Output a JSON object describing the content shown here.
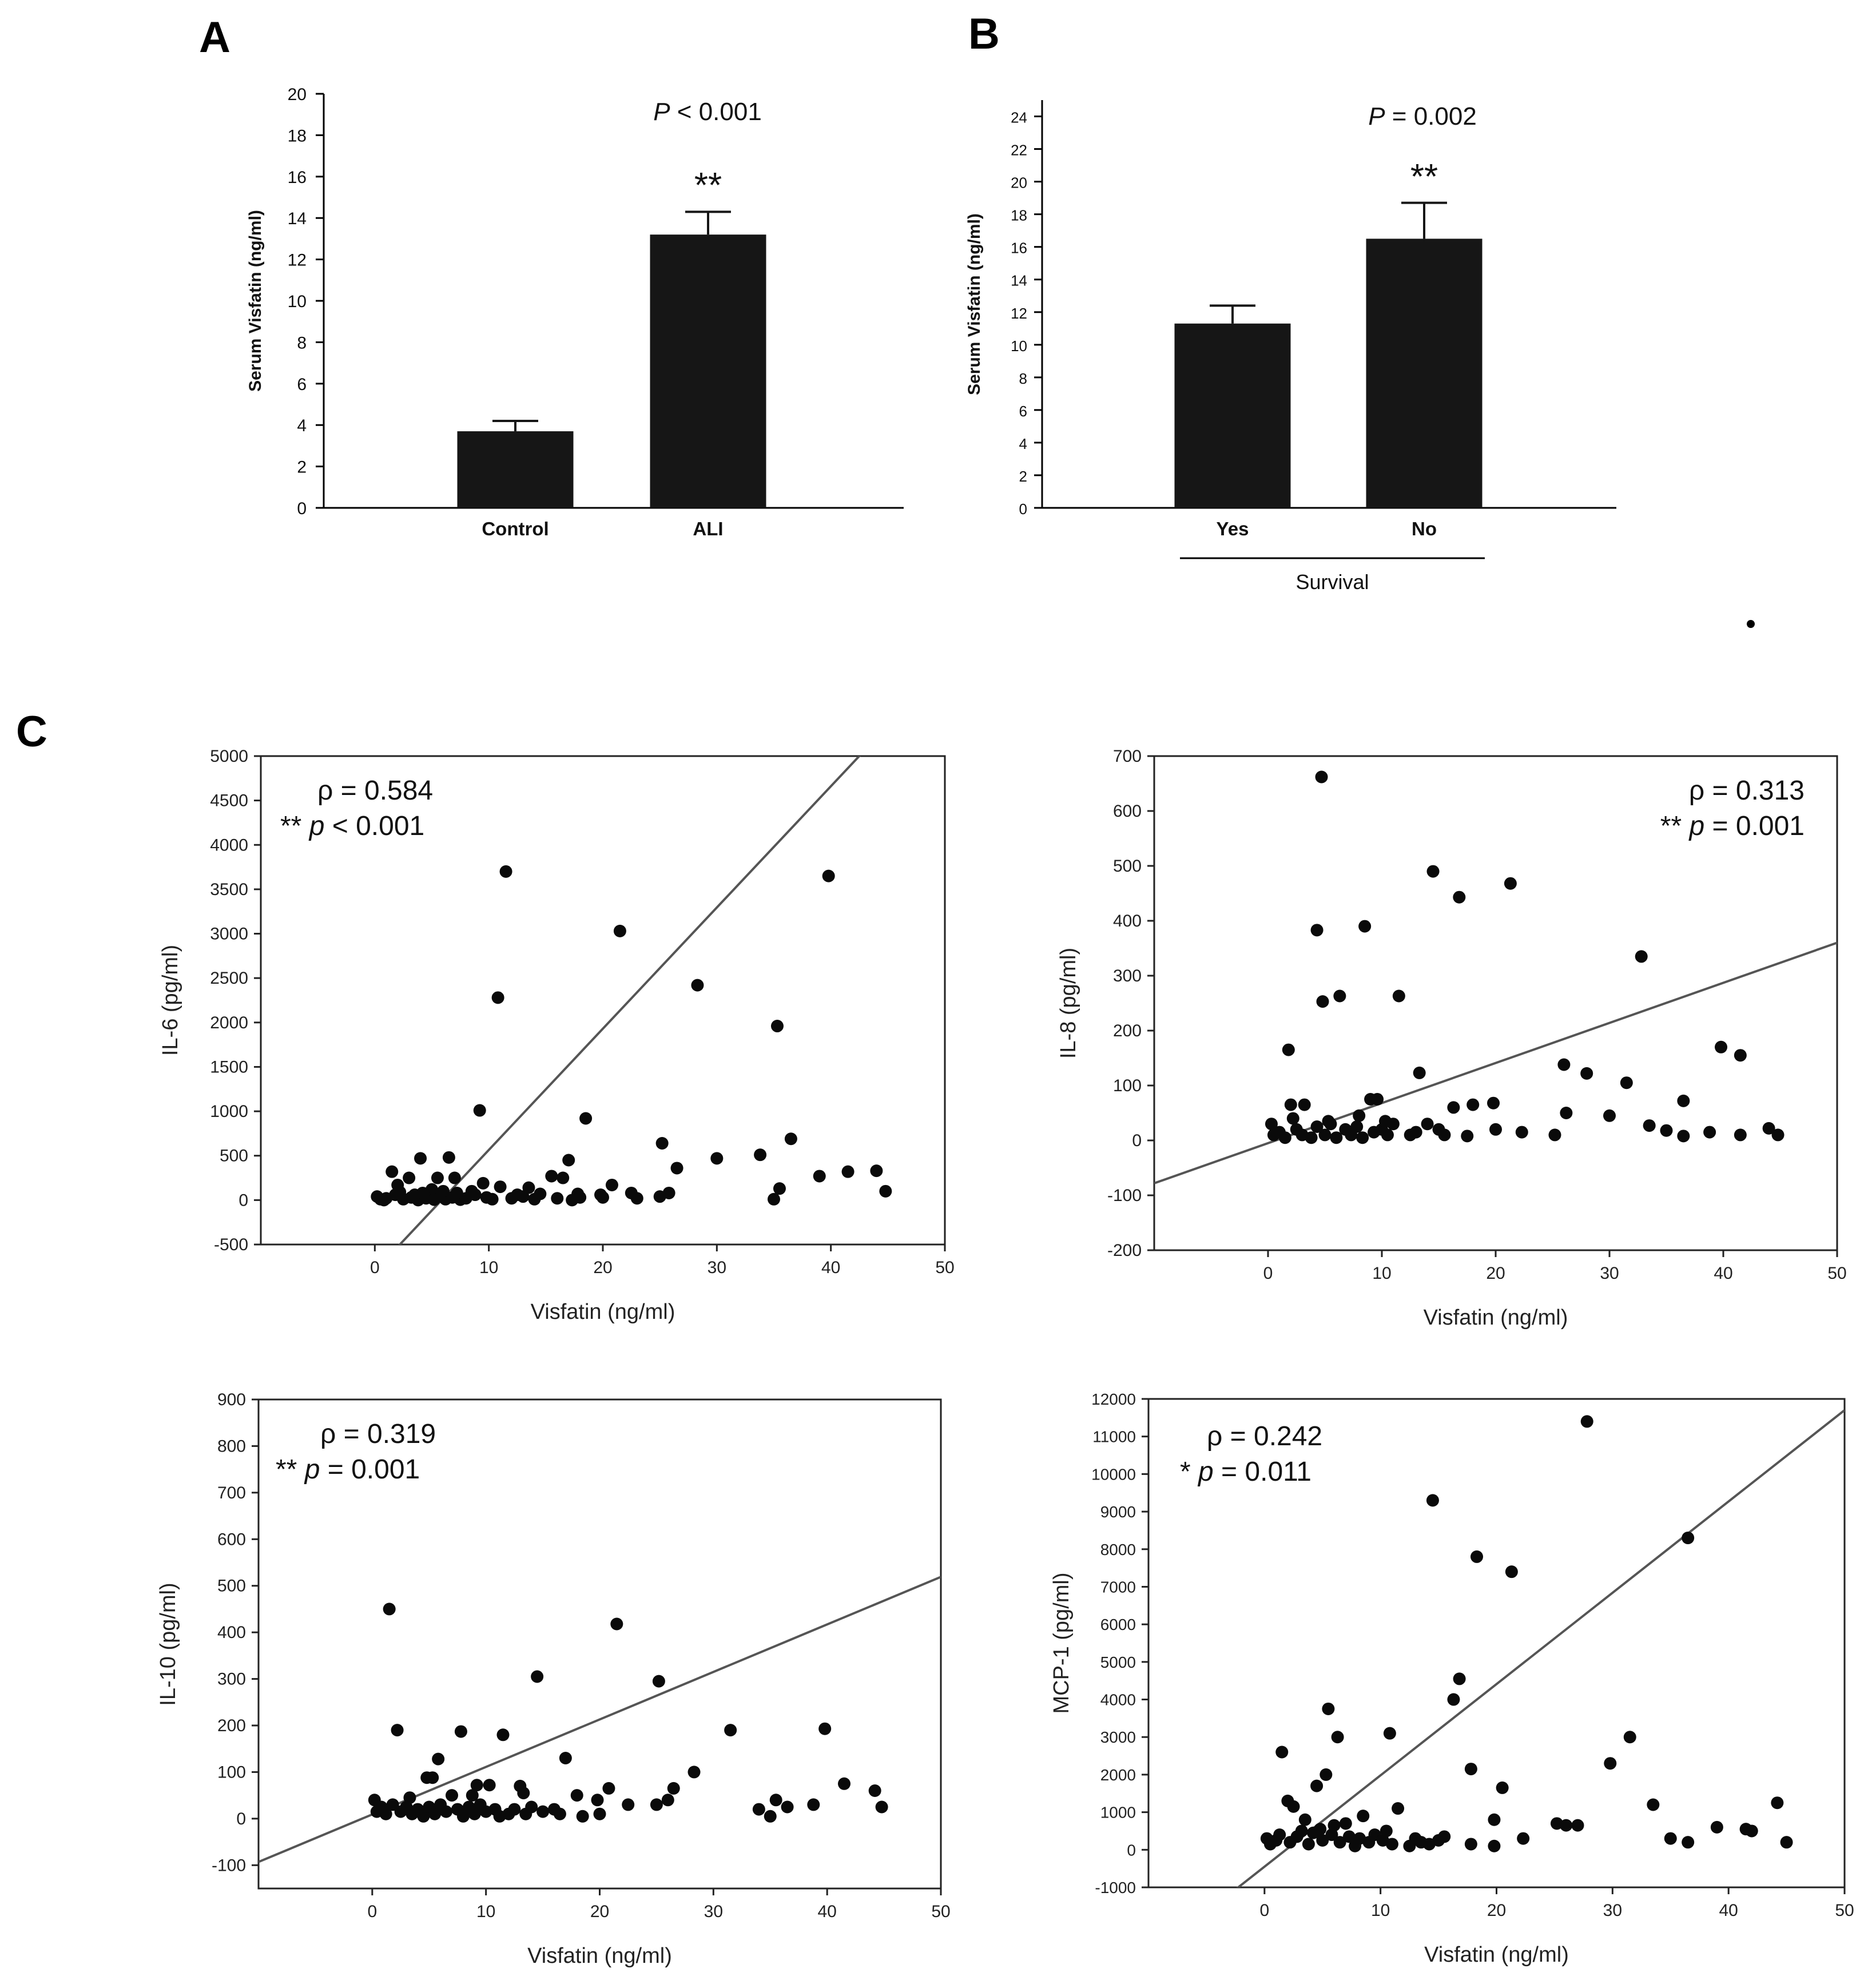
{
  "panels": {
    "a": "A",
    "b": "B",
    "c": "C"
  },
  "chart_data": [
    {
      "id": "A",
      "type": "bar",
      "ylabel": "Serum Visfatin (ng/ml)",
      "xlabel": "",
      "categories": [
        "Control",
        "ALI"
      ],
      "values": [
        3.7,
        13.2
      ],
      "errors": [
        0.5,
        1.1
      ],
      "ylim": [
        0,
        20
      ],
      "yticks": [
        0,
        2,
        4,
        6,
        8,
        10,
        12,
        14,
        16,
        18,
        20
      ],
      "annotation": {
        "italic": "P",
        "rest": " < 0.001"
      },
      "significance": [
        "",
        "**"
      ]
    },
    {
      "id": "B",
      "type": "bar",
      "ylabel": "Serum Visfatin (ng/ml)",
      "xlabel": "Survival",
      "categories": [
        "Yes",
        "No"
      ],
      "values": [
        11.3,
        16.5
      ],
      "errors": [
        1.1,
        2.2
      ],
      "ylim": [
        0,
        25
      ],
      "yticks": [
        0,
        2,
        4,
        6,
        8,
        10,
        12,
        14,
        16,
        18,
        20,
        22,
        24
      ],
      "annotation": {
        "italic": "P",
        "rest": " = 0.002"
      },
      "significance": [
        "",
        "**"
      ]
    },
    {
      "id": "C1",
      "type": "scatter",
      "xlabel": "Visfatin (ng/ml)",
      "ylabel": "IL-6 (pg/ml)",
      "xlim": [
        -10,
        50
      ],
      "ylim": [
        -500,
        5000
      ],
      "xticks": [
        0,
        10,
        20,
        30,
        40,
        50
      ],
      "yticks": [
        -500,
        0,
        500,
        1000,
        1500,
        2000,
        2500,
        3000,
        3500,
        4000,
        4500,
        5000
      ],
      "stats": {
        "rho": "ρ = 0.584",
        "stars": "**",
        "p_italic": "p",
        "p_rest": " < 0.001"
      },
      "fit_line": {
        "slope": 136.5,
        "intercept": -800
      },
      "points": [
        [
          11.5,
          3700
        ],
        [
          39.8,
          3650
        ],
        [
          21.5,
          3030
        ],
        [
          28.3,
          2420
        ],
        [
          10.8,
          2280
        ],
        [
          35.3,
          1960
        ],
        [
          9.2,
          1010
        ],
        [
          18.5,
          920
        ],
        [
          36.5,
          690
        ],
        [
          25.2,
          640
        ],
        [
          33.8,
          510
        ],
        [
          30,
          470
        ],
        [
          17,
          450
        ],
        [
          4,
          470
        ],
        [
          6.5,
          480
        ],
        [
          26.5,
          360
        ],
        [
          44,
          330
        ],
        [
          41.5,
          320
        ],
        [
          1.5,
          320
        ],
        [
          39,
          270
        ],
        [
          15.5,
          270
        ],
        [
          16.5,
          250
        ],
        [
          5.5,
          250
        ],
        [
          3,
          250
        ],
        [
          7,
          250
        ],
        [
          13.5,
          140
        ],
        [
          20.8,
          170
        ],
        [
          2,
          170
        ],
        [
          11,
          150
        ],
        [
          9.5,
          190
        ],
        [
          22.5,
          80
        ],
        [
          17.8,
          70
        ],
        [
          35.5,
          130
        ],
        [
          44.8,
          100
        ],
        [
          25.8,
          80
        ],
        [
          19.8,
          60
        ],
        [
          25,
          40
        ],
        [
          20,
          30
        ],
        [
          35,
          10
        ],
        [
          14.5,
          70
        ],
        [
          12.5,
          60
        ],
        [
          8.5,
          100
        ],
        [
          5,
          120
        ],
        [
          0.2,
          40
        ],
        [
          0.5,
          10
        ],
        [
          1,
          20
        ],
        [
          1.8,
          60
        ],
        [
          2.5,
          10
        ],
        [
          3.2,
          30
        ],
        [
          3.8,
          0
        ],
        [
          4.5,
          20
        ],
        [
          5.2,
          5
        ],
        [
          5.8,
          40
        ],
        [
          6.2,
          10
        ],
        [
          6.8,
          30
        ],
        [
          7.5,
          5
        ],
        [
          8,
          20
        ],
        [
          8.8,
          60
        ],
        [
          9.8,
          30
        ],
        [
          10.3,
          10
        ],
        [
          12,
          20
        ],
        [
          13,
          40
        ],
        [
          14,
          10
        ],
        [
          16,
          20
        ],
        [
          17.3,
          0
        ],
        [
          18,
          30
        ],
        [
          23,
          20
        ],
        [
          2.2,
          90
        ],
        [
          3.5,
          60
        ],
        [
          4.2,
          80
        ],
        [
          6,
          100
        ],
        [
          7.2,
          80
        ],
        [
          0.8,
          0
        ]
      ]
    },
    {
      "id": "C2",
      "type": "scatter",
      "xlabel": "Visfatin (ng/ml)",
      "ylabel": "IL-8 (pg/ml)",
      "xlim": [
        -10,
        50
      ],
      "ylim": [
        -200,
        700
      ],
      "xticks": [
        0,
        10,
        20,
        30,
        40,
        50
      ],
      "yticks": [
        -200,
        -100,
        0,
        100,
        200,
        300,
        400,
        500,
        600,
        700
      ],
      "stats": {
        "rho": "ρ = 0.313",
        "stars": "**",
        "p_italic": "p",
        "p_rest": " = 0.001"
      },
      "fit_line": {
        "slope": 7.3,
        "intercept": -5
      },
      "points": [
        [
          4.7,
          662
        ],
        [
          14.5,
          490
        ],
        [
          16.8,
          443
        ],
        [
          21.3,
          468
        ],
        [
          4.3,
          383
        ],
        [
          8.5,
          390
        ],
        [
          6.3,
          263
        ],
        [
          4.8,
          253
        ],
        [
          11.5,
          263
        ],
        [
          32.8,
          335
        ],
        [
          1.8,
          165
        ],
        [
          13.3,
          123
        ],
        [
          39.8,
          170
        ],
        [
          41.5,
          155
        ],
        [
          26,
          138
        ],
        [
          28,
          122
        ],
        [
          31.5,
          105
        ],
        [
          36.5,
          72
        ],
        [
          9,
          75
        ],
        [
          9.6,
          75
        ],
        [
          18,
          65
        ],
        [
          19.8,
          68
        ],
        [
          16.3,
          60
        ],
        [
          26.2,
          50
        ],
        [
          30,
          45
        ],
        [
          2,
          65
        ],
        [
          3.2,
          65
        ],
        [
          33.5,
          27
        ],
        [
          35,
          18
        ],
        [
          38.8,
          15
        ],
        [
          44,
          22
        ],
        [
          44.8,
          10
        ],
        [
          41.5,
          10
        ],
        [
          36.5,
          8
        ],
        [
          25.2,
          10
        ],
        [
          22.3,
          15
        ],
        [
          17.5,
          8
        ],
        [
          15.5,
          10
        ],
        [
          14,
          30
        ],
        [
          12.5,
          10
        ],
        [
          0.3,
          30
        ],
        [
          0.5,
          10
        ],
        [
          1,
          15
        ],
        [
          1.5,
          5
        ],
        [
          2.5,
          20
        ],
        [
          3,
          10
        ],
        [
          3.8,
          5
        ],
        [
          4.3,
          25
        ],
        [
          5,
          10
        ],
        [
          5.5,
          30
        ],
        [
          6,
          5
        ],
        [
          6.8,
          20
        ],
        [
          7.3,
          10
        ],
        [
          7.8,
          25
        ],
        [
          8.3,
          5
        ],
        [
          9.3,
          15
        ],
        [
          10,
          20
        ],
        [
          10.5,
          10
        ],
        [
          11,
          30
        ],
        [
          13,
          15
        ],
        [
          15,
          20
        ],
        [
          20,
          20
        ],
        [
          2.2,
          40
        ],
        [
          5.3,
          35
        ],
        [
          8,
          45
        ],
        [
          10.3,
          35
        ]
      ]
    },
    {
      "id": "C3",
      "type": "scatter",
      "xlabel": "Visfatin (ng/ml)",
      "ylabel": "IL-10 (pg/ml)",
      "xlim": [
        -10,
        50
      ],
      "ylim": [
        -150,
        900
      ],
      "xticks": [
        0,
        10,
        20,
        30,
        40,
        50
      ],
      "yticks": [
        -100,
        0,
        100,
        200,
        300,
        400,
        500,
        600,
        700,
        800,
        900
      ],
      "stats": {
        "rho": "ρ = 0.319",
        "stars": "**",
        "p_italic": "p",
        "p_rest": " = 0.001"
      },
      "fit_line": {
        "slope": 10.2,
        "intercept": 9
      },
      "points": [
        [
          1.5,
          450
        ],
        [
          21.5,
          418
        ],
        [
          14.5,
          305
        ],
        [
          25.2,
          295
        ],
        [
          2.2,
          190
        ],
        [
          7.8,
          187
        ],
        [
          11.5,
          180
        ],
        [
          31.5,
          190
        ],
        [
          39.8,
          193
        ],
        [
          17,
          130
        ],
        [
          5.8,
          128
        ],
        [
          28.3,
          100
        ],
        [
          4.8,
          88
        ],
        [
          5.3,
          88
        ],
        [
          9.2,
          72
        ],
        [
          10.3,
          72
        ],
        [
          13,
          70
        ],
        [
          20.8,
          65
        ],
        [
          26.5,
          65
        ],
        [
          41.5,
          75
        ],
        [
          44.2,
          60
        ],
        [
          18,
          50
        ],
        [
          7,
          50
        ],
        [
          19.8,
          40
        ],
        [
          26,
          40
        ],
        [
          35.5,
          40
        ],
        [
          38.8,
          30
        ],
        [
          36.5,
          25
        ],
        [
          34,
          20
        ],
        [
          44.8,
          25
        ],
        [
          22.5,
          30
        ],
        [
          25,
          30
        ],
        [
          16,
          20
        ],
        [
          15,
          15
        ],
        [
          12,
          10
        ],
        [
          20,
          10
        ],
        [
          18.5,
          5
        ],
        [
          35,
          5
        ],
        [
          0.2,
          40
        ],
        [
          0.4,
          15
        ],
        [
          0.8,
          25
        ],
        [
          1.2,
          10
        ],
        [
          1.8,
          30
        ],
        [
          2.5,
          15
        ],
        [
          3,
          25
        ],
        [
          3.5,
          10
        ],
        [
          4,
          20
        ],
        [
          4.5,
          5
        ],
        [
          5,
          25
        ],
        [
          5.5,
          10
        ],
        [
          6,
          30
        ],
        [
          6.5,
          15
        ],
        [
          7.5,
          20
        ],
        [
          8,
          5
        ],
        [
          8.5,
          25
        ],
        [
          9,
          10
        ],
        [
          9.5,
          30
        ],
        [
          10,
          15
        ],
        [
          10.8,
          20
        ],
        [
          11.2,
          5
        ],
        [
          12.5,
          20
        ],
        [
          13.5,
          10
        ],
        [
          14,
          25
        ],
        [
          16.5,
          10
        ],
        [
          3.3,
          45
        ],
        [
          8.8,
          50
        ],
        [
          13.3,
          55
        ]
      ]
    },
    {
      "id": "C4",
      "type": "scatter",
      "xlabel": "Visfatin (ng/ml)",
      "ylabel": "MCP-1 (pg/ml)",
      "xlim": [
        -10,
        50
      ],
      "ylim": [
        -1000,
        12000
      ],
      "xticks": [
        0,
        10,
        20,
        30,
        40,
        50
      ],
      "yticks": [
        -1000,
        0,
        1000,
        2000,
        3000,
        4000,
        5000,
        6000,
        7000,
        8000,
        9000,
        10000,
        11000,
        12000
      ],
      "stats": {
        "rho": "ρ = 0.242",
        "stars": "*",
        "p_italic": "p",
        "p_rest": " = 0.011"
      },
      "fit_line": {
        "slope": 243,
        "intercept": -450
      },
      "points": [
        [
          27.8,
          11400
        ],
        [
          14.5,
          9300
        ],
        [
          36.5,
          8300
        ],
        [
          18.3,
          7800
        ],
        [
          21.3,
          7400
        ],
        [
          16.8,
          4550
        ],
        [
          16.3,
          4000
        ],
        [
          5.5,
          3750
        ],
        [
          6.3,
          3000
        ],
        [
          31.5,
          3000
        ],
        [
          10.8,
          3100
        ],
        [
          1.5,
          2600
        ],
        [
          29.8,
          2300
        ],
        [
          17.8,
          2150
        ],
        [
          5.3,
          2000
        ],
        [
          20.5,
          1650
        ],
        [
          4.5,
          1700
        ],
        [
          33.5,
          1200
        ],
        [
          44.2,
          1250
        ],
        [
          11.5,
          1100
        ],
        [
          2,
          1300
        ],
        [
          2.5,
          1150
        ],
        [
          3.5,
          800
        ],
        [
          7,
          700
        ],
        [
          8.5,
          900
        ],
        [
          39,
          600
        ],
        [
          41.5,
          550
        ],
        [
          42,
          500
        ],
        [
          25.2,
          700
        ],
        [
          26,
          650
        ],
        [
          27,
          650
        ],
        [
          19.8,
          800
        ],
        [
          35,
          300
        ],
        [
          36.5,
          200
        ],
        [
          45,
          200
        ],
        [
          22.3,
          300
        ],
        [
          17.8,
          150
        ],
        [
          19.8,
          100
        ],
        [
          0.2,
          300
        ],
        [
          0.5,
          150
        ],
        [
          1,
          250
        ],
        [
          1.3,
          400
        ],
        [
          2.2,
          200
        ],
        [
          2.8,
          350
        ],
        [
          3.2,
          500
        ],
        [
          3.8,
          150
        ],
        [
          4.2,
          450
        ],
        [
          5,
          250
        ],
        [
          5.8,
          400
        ],
        [
          6.5,
          200
        ],
        [
          7.3,
          350
        ],
        [
          7.8,
          100
        ],
        [
          8.2,
          300
        ],
        [
          9,
          200
        ],
        [
          9.5,
          400
        ],
        [
          10.2,
          250
        ],
        [
          11,
          150
        ],
        [
          12.5,
          100
        ],
        [
          13,
          300
        ],
        [
          13.5,
          200
        ],
        [
          14.2,
          150
        ],
        [
          15,
          250
        ],
        [
          15.5,
          350
        ],
        [
          10.5,
          500
        ],
        [
          6,
          650
        ],
        [
          4.8,
          550
        ]
      ]
    }
  ]
}
